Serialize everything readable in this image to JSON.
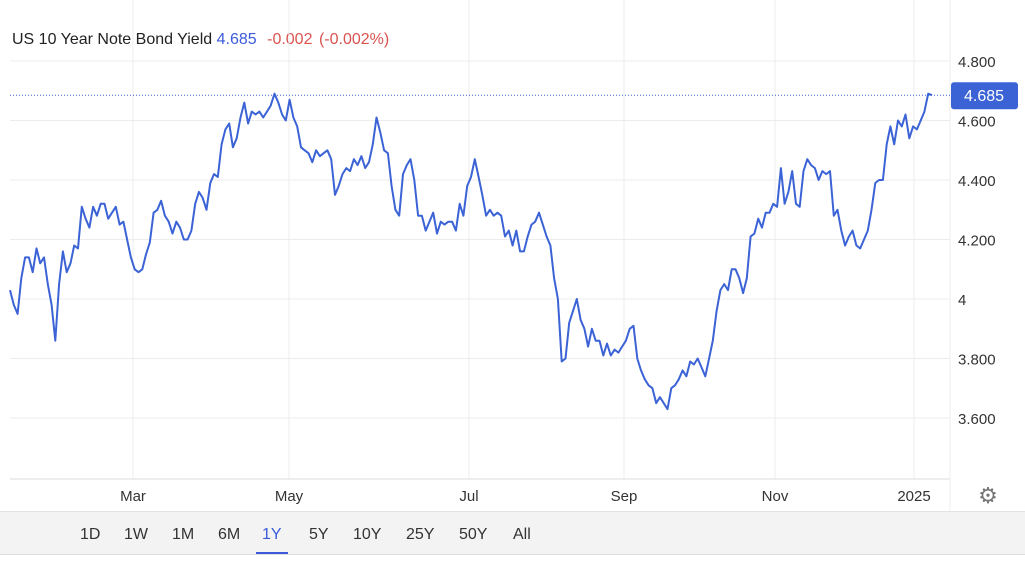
{
  "header": {
    "name": "US 10 Year Note Bond Yield",
    "last": "4.685",
    "change": "-0.002",
    "change_pct": "(-0.002%)"
  },
  "range_buttons": [
    "1D",
    "1W",
    "1M",
    "6M",
    "1Y",
    "5Y",
    "10Y",
    "25Y",
    "50Y",
    "All"
  ],
  "active_range": "1Y",
  "settings_icon": "gear-icon",
  "colors": {
    "line": "#3b63d6",
    "change_negative": "#d9534f",
    "badge": "#3b63d6"
  },
  "chart_data": {
    "type": "line",
    "title": "US 10 Year Note Bond Yield",
    "x_tick_labels": [
      "Mar",
      "May",
      "Jul",
      "Sep",
      "Nov",
      "2025"
    ],
    "y_tick_labels": [
      "4.800",
      "4.600",
      "4.400",
      "4.200",
      "4",
      "3.800",
      "3.600"
    ],
    "y_ticks": [
      4.8,
      4.6,
      4.4,
      4.2,
      4.0,
      3.8,
      3.6
    ],
    "ylim": [
      3.43,
      4.86
    ],
    "xlim": [
      "2024-01",
      "2025-01"
    ],
    "grid": true,
    "last_value_label": "4.685",
    "series": [
      {
        "values": [
          4.03,
          3.98,
          3.95,
          4.07,
          4.14,
          4.14,
          4.09,
          4.17,
          4.12,
          4.14,
          4.05,
          3.98,
          3.86,
          4.05,
          4.16,
          4.09,
          4.12,
          4.18,
          4.17,
          4.31,
          4.27,
          4.24,
          4.31,
          4.28,
          4.32,
          4.32,
          4.27,
          4.29,
          4.31,
          4.25,
          4.26,
          4.2,
          4.14,
          4.1,
          4.09,
          4.1,
          4.15,
          4.19,
          4.29,
          4.3,
          4.33,
          4.28,
          4.26,
          4.22,
          4.26,
          4.24,
          4.2,
          4.2,
          4.23,
          4.32,
          4.36,
          4.34,
          4.3,
          4.39,
          4.42,
          4.41,
          4.52,
          4.57,
          4.59,
          4.51,
          4.54,
          4.61,
          4.66,
          4.59,
          4.63,
          4.62,
          4.63,
          4.61,
          4.63,
          4.65,
          4.69,
          4.66,
          4.62,
          4.6,
          4.67,
          4.61,
          4.58,
          4.51,
          4.5,
          4.49,
          4.46,
          4.5,
          4.48,
          4.49,
          4.5,
          4.47,
          4.35,
          4.38,
          4.42,
          4.44,
          4.43,
          4.47,
          4.45,
          4.48,
          4.44,
          4.46,
          4.52,
          4.61,
          4.56,
          4.5,
          4.49,
          4.38,
          4.3,
          4.28,
          4.42,
          4.45,
          4.47,
          4.4,
          4.28,
          4.28,
          4.23,
          4.26,
          4.29,
          4.22,
          4.26,
          4.25,
          4.26,
          4.26,
          4.23,
          4.32,
          4.28,
          4.38,
          4.41,
          4.47,
          4.41,
          4.35,
          4.28,
          4.3,
          4.28,
          4.29,
          4.28,
          4.21,
          4.23,
          4.18,
          4.23,
          4.16,
          4.16,
          4.21,
          4.25,
          4.26,
          4.29,
          4.25,
          4.21,
          4.18,
          4.07,
          4.0,
          3.79,
          3.8,
          3.92,
          3.96,
          4.0,
          3.93,
          3.9,
          3.84,
          3.9,
          3.86,
          3.86,
          3.81,
          3.85,
          3.81,
          3.83,
          3.82,
          3.84,
          3.86,
          3.9,
          3.91,
          3.8,
          3.76,
          3.73,
          3.71,
          3.7,
          3.65,
          3.67,
          3.65,
          3.63,
          3.7,
          3.71,
          3.73,
          3.76,
          3.74,
          3.79,
          3.78,
          3.8,
          3.77,
          3.74,
          3.8,
          3.86,
          3.96,
          4.03,
          4.05,
          4.03,
          4.1,
          4.1,
          4.07,
          4.02,
          4.07,
          4.21,
          4.22,
          4.27,
          4.24,
          4.29,
          4.29,
          4.32,
          4.31,
          4.44,
          4.32,
          4.36,
          4.43,
          4.32,
          4.31,
          4.43,
          4.47,
          4.45,
          4.44,
          4.4,
          4.43,
          4.42,
          4.43,
          4.28,
          4.3,
          4.23,
          4.18,
          4.21,
          4.23,
          4.18,
          4.17,
          4.2,
          4.23,
          4.3,
          4.39,
          4.4,
          4.4,
          4.52,
          4.58,
          4.52,
          4.6,
          4.58,
          4.62,
          4.54,
          4.58,
          4.57,
          4.6,
          4.63,
          4.69,
          4.685
        ]
      }
    ]
  }
}
